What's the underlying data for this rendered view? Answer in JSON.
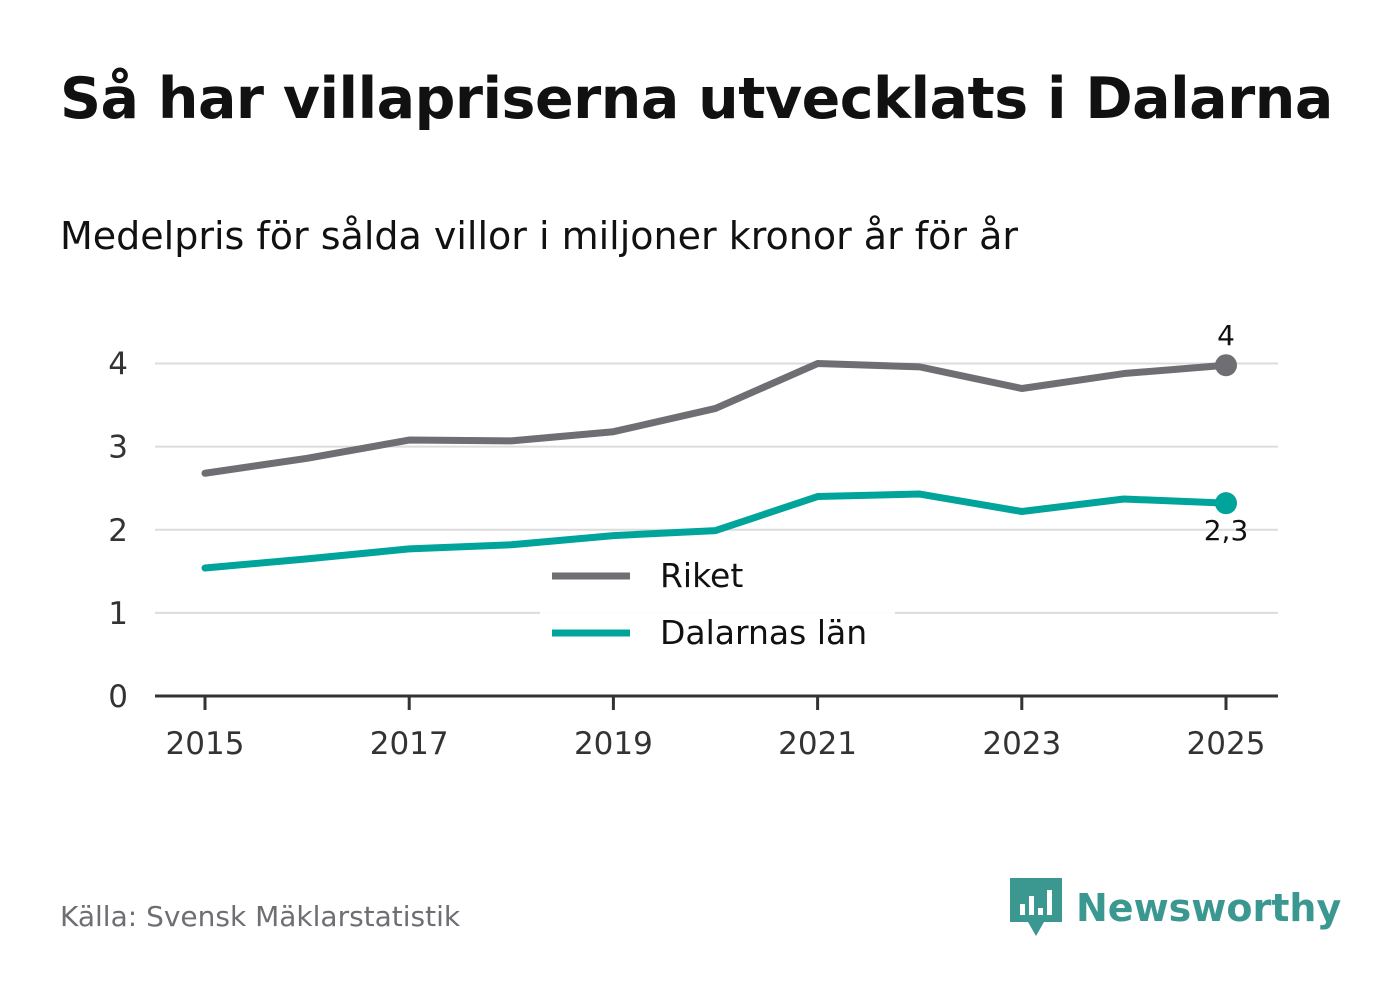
{
  "title": "Så har villapriserna utvecklats i Dalarna",
  "subtitle": "Medelpris för sålda villor i miljoner kronor år för år",
  "source": "Källa: Svensk Mäklarstatistik",
  "brand": {
    "name": "Newsworthy",
    "icon": "newsworthy-logo-icon",
    "color": "#3b9890"
  },
  "chart_data": {
    "type": "line",
    "title": "Så har villapriserna utvecklats i Dalarna",
    "subtitle": "Medelpris för sålda villor i miljoner kronor år för år",
    "xlabel": "",
    "ylabel": "",
    "x": [
      2015,
      2016,
      2017,
      2018,
      2019,
      2020,
      2021,
      2022,
      2023,
      2024,
      2025
    ],
    "xticks": [
      "2015",
      "2017",
      "2019",
      "2021",
      "2023",
      "2025"
    ],
    "yticks": [
      "0",
      "1",
      "2",
      "3",
      "4"
    ],
    "ylim": [
      0,
      4.5
    ],
    "grid": true,
    "legend_position": "center",
    "series": [
      {
        "name": "Riket",
        "color": "#6e6e73",
        "values": [
          2.68,
          2.86,
          3.08,
          3.07,
          3.18,
          3.46,
          4.0,
          3.96,
          3.7,
          3.88,
          3.98
        ],
        "end_label": "4"
      },
      {
        "name": "Dalarnas län",
        "color": "#00a49a",
        "values": [
          1.54,
          1.65,
          1.77,
          1.82,
          1.93,
          1.99,
          2.4,
          2.43,
          2.22,
          2.37,
          2.32
        ],
        "end_label": "2,3"
      }
    ]
  }
}
